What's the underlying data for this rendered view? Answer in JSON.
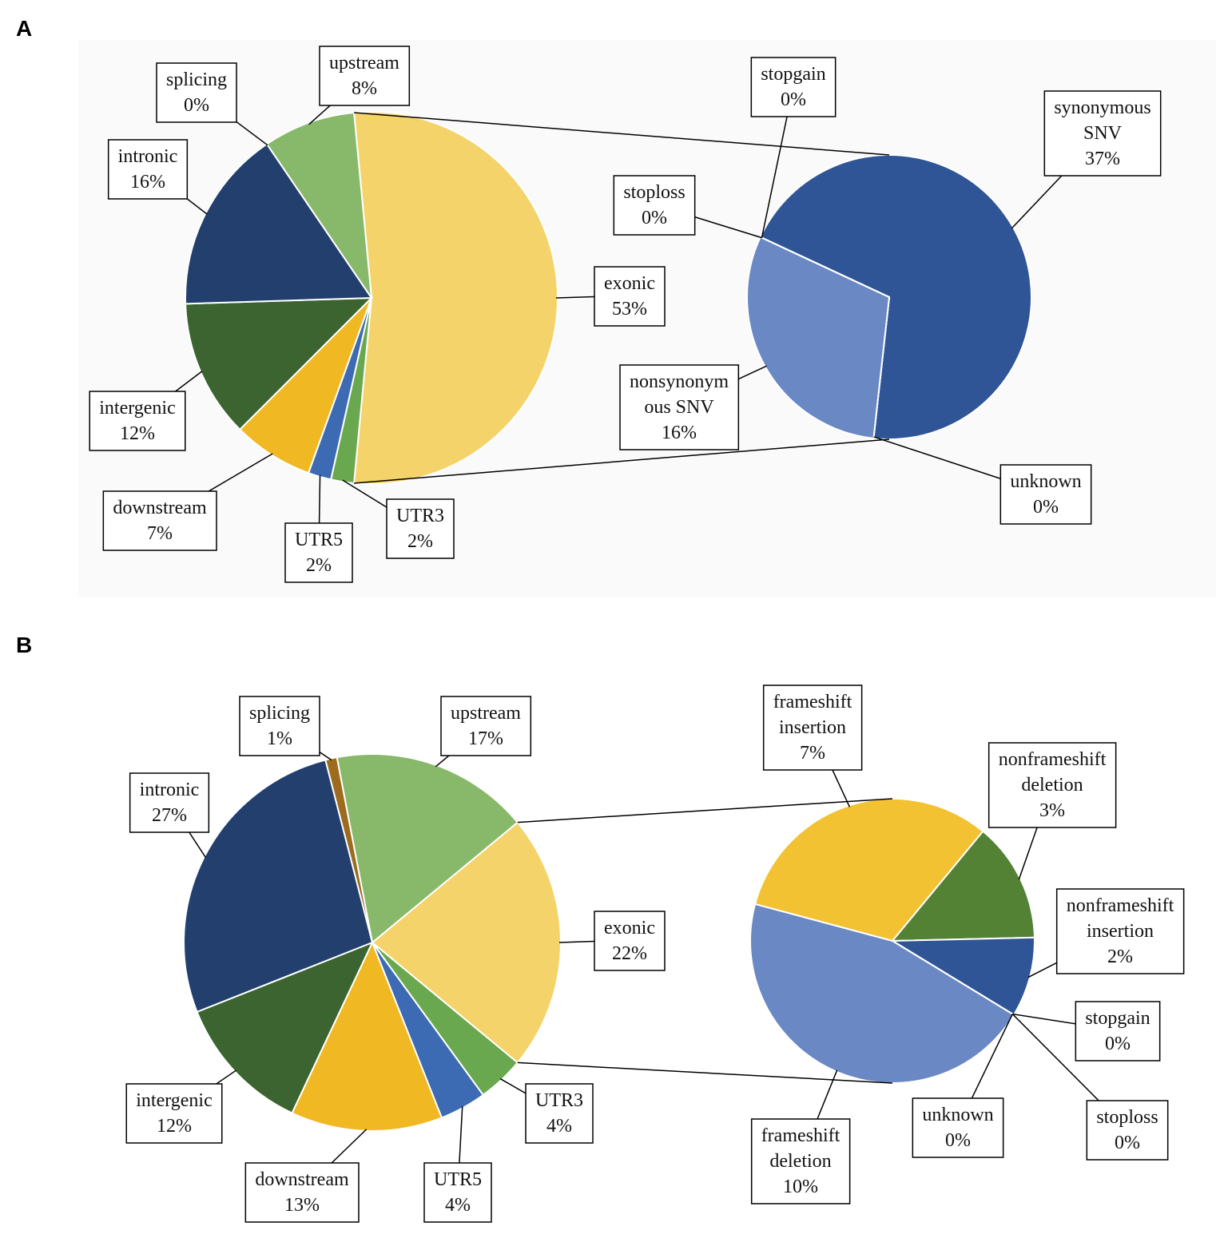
{
  "panel_labels": [
    "A",
    "B"
  ],
  "chart_data": [
    {
      "type": "pie",
      "categories": [
        "exonic",
        "UTR3",
        "UTR5",
        "downstream",
        "intergenic",
        "intronic",
        "splicing",
        "upstream"
      ],
      "values": [
        53,
        2,
        2,
        7,
        12,
        16,
        0,
        8
      ],
      "value_labels": [
        "53%",
        "2%",
        "2%",
        "7%",
        "12%",
        "16%",
        "0%",
        "8%"
      ],
      "colors": [
        "#f5d36b",
        "#6aa84f",
        "#3c6ab3",
        "#f0b823",
        "#3b6430",
        "#223f6e",
        "#9c6b1e",
        "#88b86a"
      ]
    },
    {
      "type": "pie",
      "categories": [
        "synonymous\nSNV",
        "unknown",
        "nonsynonym\nous SNV",
        "stoploss",
        "stopgain"
      ],
      "values": [
        37,
        0,
        16,
        0,
        0
      ],
      "value_labels": [
        "37%",
        "0%",
        "16%",
        "0%",
        "0%"
      ],
      "colors": [
        "#2f5597",
        "#c9a227",
        "#6a88c4",
        "#a5a5a5",
        "#c8961e"
      ]
    },
    {
      "type": "pie",
      "categories": [
        "exonic",
        "UTR3",
        "UTR5",
        "downstream",
        "intergenic",
        "intronic",
        "splicing",
        "upstream"
      ],
      "values": [
        22,
        4,
        4,
        13,
        12,
        27,
        1,
        17
      ],
      "value_labels": [
        "22%",
        "4%",
        "4%",
        "13%",
        "12%",
        "27%",
        "1%",
        "17%"
      ],
      "colors": [
        "#f5d36b",
        "#6aa84f",
        "#3c6ab3",
        "#f0b823",
        "#3b6430",
        "#223f6e",
        "#9c6b1e",
        "#88b86a"
      ]
    },
    {
      "type": "pie",
      "categories": [
        "frameshift\ninsertion",
        "nonframeshift\ndeletion",
        "nonframeshift\ninsertion",
        "stopgain",
        "stoploss",
        "unknown",
        "frameshift\ndeletion"
      ],
      "values": [
        7,
        3,
        2,
        0,
        0,
        0,
        10
      ],
      "value_labels": [
        "7%",
        "3%",
        "2%",
        "0%",
        "0%",
        "0%",
        "10%"
      ],
      "colors": [
        "#f2c232",
        "#548235",
        "#2f5597",
        "#c8961e",
        "#a5a5a5",
        "#8fa9dc",
        "#6a88c4"
      ]
    }
  ]
}
